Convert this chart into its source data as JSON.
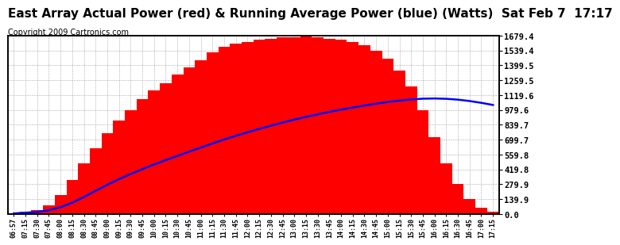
{
  "title": "East Array Actual Power (red) & Running Average Power (blue) (Watts)  Sat Feb 7  17:17",
  "copyright": "Copyright 2009 Cartronics.com",
  "ylabel_right_ticks": [
    0.0,
    139.9,
    279.9,
    419.8,
    559.8,
    699.7,
    839.7,
    979.6,
    1119.6,
    1259.5,
    1399.5,
    1539.4,
    1679.4
  ],
  "ymax": 1679.4,
  "ymin": 0.0,
  "bar_color": "#ff0000",
  "avg_color": "#0000ff",
  "background_color": "#ffffff",
  "grid_color": "#aaaaaa",
  "title_fontsize": 11,
  "copyright_fontsize": 7,
  "tick_labels": [
    "06:57",
    "07:15",
    "07:30",
    "07:45",
    "08:00",
    "08:15",
    "08:30",
    "08:45",
    "09:00",
    "09:15",
    "09:30",
    "09:45",
    "10:00",
    "10:15",
    "10:30",
    "10:45",
    "11:00",
    "11:15",
    "11:30",
    "11:45",
    "12:00",
    "12:15",
    "12:30",
    "12:45",
    "13:00",
    "13:15",
    "13:30",
    "13:45",
    "14:00",
    "14:15",
    "14:30",
    "14:45",
    "15:00",
    "15:15",
    "15:30",
    "15:45",
    "16:00",
    "16:15",
    "16:30",
    "16:45",
    "17:00",
    "17:15"
  ],
  "actual_power": [
    5,
    18,
    35,
    80,
    180,
    320,
    480,
    620,
    760,
    880,
    980,
    1080,
    1160,
    1230,
    1310,
    1380,
    1450,
    1520,
    1570,
    1600,
    1620,
    1640,
    1650,
    1660,
    1665,
    1670,
    1660,
    1650,
    1640,
    1620,
    1590,
    1540,
    1460,
    1350,
    1200,
    980,
    720,
    480,
    280,
    140,
    60,
    20
  ],
  "running_avg": [
    5,
    12,
    19,
    35,
    64,
    106,
    160,
    218,
    275,
    328,
    376,
    422,
    466,
    507,
    547,
    586,
    625,
    664,
    701,
    736,
    769,
    801,
    831,
    860,
    888,
    914,
    938,
    961,
    982,
    1002,
    1021,
    1038,
    1054,
    1067,
    1078,
    1085,
    1087,
    1084,
    1076,
    1063,
    1046,
    1026
  ]
}
